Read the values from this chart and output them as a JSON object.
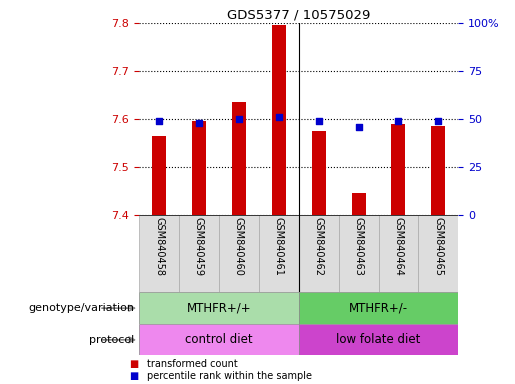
{
  "title": "GDS5377 / 10575029",
  "samples": [
    "GSM840458",
    "GSM840459",
    "GSM840460",
    "GSM840461",
    "GSM840462",
    "GSM840463",
    "GSM840464",
    "GSM840465"
  ],
  "transformed_count": [
    7.565,
    7.595,
    7.635,
    7.795,
    7.575,
    7.445,
    7.59,
    7.585
  ],
  "percentile_rank": [
    49,
    48,
    50,
    51,
    49,
    46,
    49,
    49
  ],
  "bar_bottom": 7.4,
  "ylim_left": [
    7.4,
    7.8
  ],
  "ylim_right": [
    0,
    100
  ],
  "yticks_left": [
    7.4,
    7.5,
    7.6,
    7.7,
    7.8
  ],
  "yticks_right": [
    0,
    25,
    50,
    75,
    100
  ],
  "bar_color": "#cc0000",
  "dot_color": "#0000cc",
  "left_tick_color": "#cc0000",
  "right_tick_color": "#0000cc",
  "group1_label": "MTHFR+/+",
  "group2_label": "MTHFR+/-",
  "protocol1_label": "control diet",
  "protocol2_label": "low folate diet",
  "group1_color": "#aaddaa",
  "group2_color": "#66cc66",
  "protocol1_color": "#ee88ee",
  "protocol2_color": "#cc44cc",
  "separator_idx": 4,
  "legend_bar_label": "transformed count",
  "legend_dot_label": "percentile rank within the sample",
  "genotype_label": "genotype/variation",
  "protocol_label": "protocol",
  "label_color": "#888888"
}
